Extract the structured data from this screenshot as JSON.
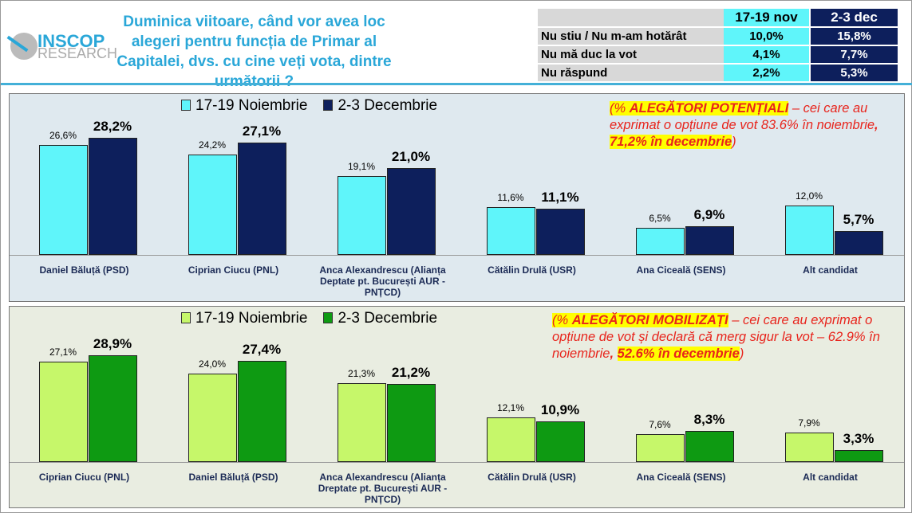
{
  "header": {
    "logo": {
      "brand": "INSCOP",
      "sub": "RESEARCH"
    },
    "title": "Duminica viitoare, când vor avea loc alegeri pentru funcția de Primar al Capitalei, dvs. cu cine veți vota, dintre următorii ?"
  },
  "table": {
    "columns": [
      "17-19 nov",
      "2-3 dec"
    ],
    "rows": [
      {
        "label": "Nu stiu / Nu m-am hotărât",
        "nov": "10,0%",
        "dec": "15,8%"
      },
      {
        "label": "Nu mă duc la vot",
        "nov": "4,1%",
        "dec": "7,7%"
      },
      {
        "label": "Nu răspund",
        "nov": "2,2%",
        "dec": "5,3%"
      }
    ]
  },
  "notes": {
    "p1": {
      "open": "(% ",
      "bold": "ALEGĂTORI POTENȚIALI",
      "mid": " – cei care au exprimat o opțiune de vot 83.6% în noiembrie",
      "comma": ", ",
      "bold2": "71,2% în decembrie",
      "close": ")"
    },
    "p2": {
      "open": "(% ",
      "bold": "ALEGĂTORI MOBILIZAȚI",
      "mid": " – cei care au exprimat o opțiune de vot și declară că merg sigur la vot – 62.9% în noiembrie",
      "comma": ", ",
      "bold2": "52.6% în decembrie",
      "close": ")"
    }
  },
  "chart_data": [
    {
      "type": "bar",
      "series": [
        {
          "name": "17-19 Noiembrie",
          "color": "#5ff5fa",
          "values": [
            26.6,
            24.2,
            19.1,
            11.6,
            6.5,
            12.0
          ],
          "labels": [
            "26,6%",
            "24,2%",
            "19,1%",
            "11,6%",
            "6,5%",
            "12,0%"
          ]
        },
        {
          "name": "2-3 Decembrie",
          "color": "#0d1f5c",
          "values": [
            28.2,
            27.1,
            21.0,
            11.1,
            6.9,
            5.7
          ],
          "labels": [
            "28,2%",
            "27,1%",
            "21,0%",
            "11,1%",
            "6,9%",
            "5,7%"
          ]
        }
      ],
      "categories": [
        "Daniel Băluță (PSD)",
        "Ciprian Ciucu (PNL)",
        "Anca Alexandrescu (Alianța Deptate pt. București AUR - PNȚCD)",
        "Cătălin Drulă (USR)",
        "Ana Ciceală (SENS)",
        "Alt candidat"
      ],
      "legend": "top"
    },
    {
      "type": "bar",
      "series": [
        {
          "name": "17-19 Noiembrie",
          "color": "#c6f76a",
          "values": [
            27.1,
            24.0,
            21.3,
            12.1,
            7.6,
            7.9
          ],
          "labels": [
            "27,1%",
            "24,0%",
            "21,3%",
            "12,1%",
            "7,6%",
            "7,9%"
          ]
        },
        {
          "name": "2-3 Decembrie",
          "color": "#0e9a12",
          "values": [
            28.9,
            27.4,
            21.2,
            10.9,
            8.3,
            3.3
          ],
          "labels": [
            "28,9%",
            "27,4%",
            "21,2%",
            "10,9%",
            "8,3%",
            "3,3%"
          ]
        }
      ],
      "categories": [
        "Ciprian Ciucu (PNL)",
        "Daniel Băluță (PSD)",
        "Anca Alexandrescu (Alianța Dreptate pt. București AUR - PNȚCD)",
        "Cătălin Drulă (USR)",
        "Ana Ciceală (SENS)",
        "Alt candidat"
      ],
      "legend": "top"
    }
  ]
}
